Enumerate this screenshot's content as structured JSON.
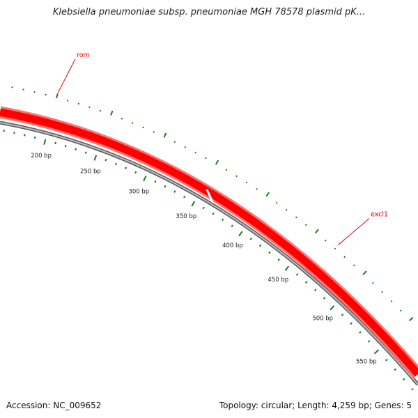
{
  "title": "Klebsiella pneumoniae subsp. pneumoniae MGH 78578 plasmid pK...",
  "footer": {
    "accession": "Accession: NC_009652",
    "summary": "Topology: circular; Length: 4,259 bp; Genes: 5"
  },
  "colors": {
    "gene": "#ff0000",
    "gene_outline": "#ff7070",
    "backbone": "#8a8a8a",
    "ticks": "#1a7a1a",
    "label_line": "#dd0000"
  },
  "ticks": [
    {
      "bp": 200,
      "label": "200 bp"
    },
    {
      "bp": 250,
      "label": "250 bp"
    },
    {
      "bp": 300,
      "label": "300 bp"
    },
    {
      "bp": 350,
      "label": "350 bp"
    },
    {
      "bp": 400,
      "label": "400 bp"
    },
    {
      "bp": 450,
      "label": "450 bp"
    },
    {
      "bp": 500,
      "label": "500 bp"
    },
    {
      "bp": 550,
      "label": "550 bp"
    }
  ],
  "genes": [
    {
      "name": "rom",
      "bp": 200
    },
    {
      "name": "excl1",
      "bp": 470
    }
  ]
}
